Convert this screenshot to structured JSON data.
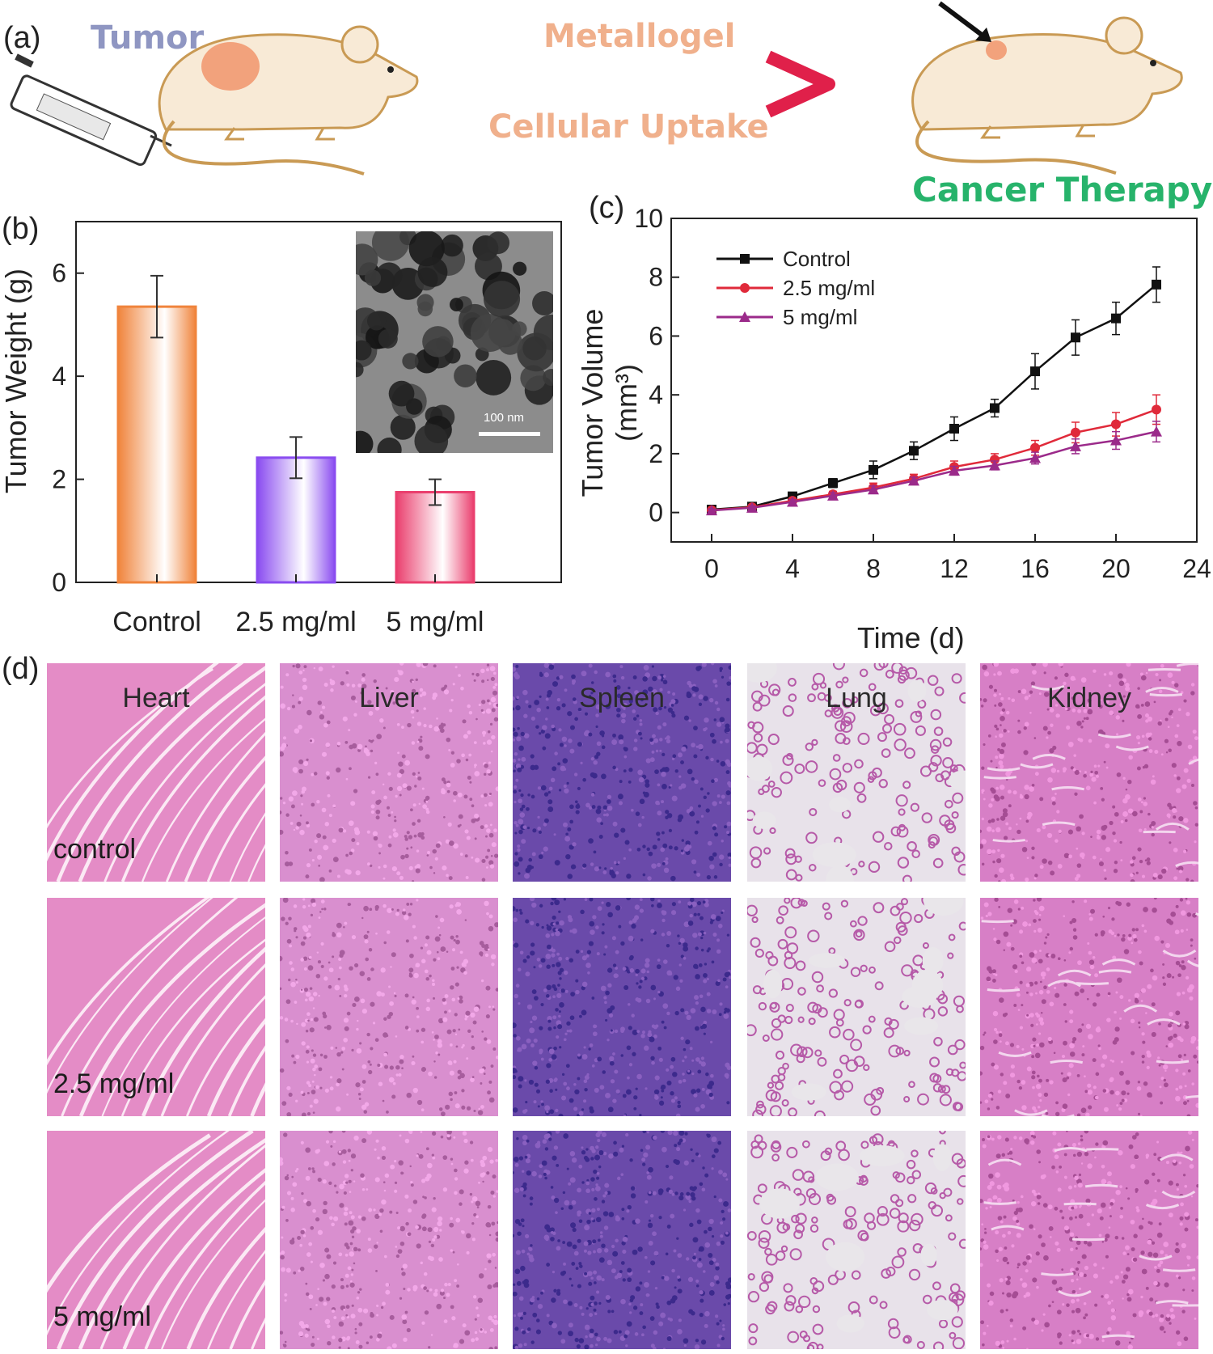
{
  "panel_a": {
    "label": "(a)",
    "tumor_text": "Tumor",
    "arrow_top_text": "Metallogel",
    "arrow_bottom_text": "Cellular Uptake",
    "result_text": "Cancer Therapy",
    "colors": {
      "tumor_text": "#8f96c2",
      "process_text": "#f0b08c",
      "result_text": "#27b36b",
      "arrow_start": "#5a2ca8",
      "arrow_end": "#e0204a",
      "mouse_fill": "#f8ead6",
      "mouse_outline": "#c99a54",
      "tumor_spot": "#f2a27c"
    }
  },
  "panel_b": {
    "label": "(b)",
    "inset_scale": "100 nm",
    "chart_data": {
      "type": "bar",
      "categories": [
        "Control",
        "2.5 mg/ml",
        "5 mg/ml"
      ],
      "values": [
        5.35,
        2.42,
        1.75
      ],
      "errors": [
        0.6,
        0.4,
        0.25
      ],
      "colors": [
        "#f0843c",
        "#8a4cf0",
        "#ea3f6e"
      ],
      "ylabel": "Tumor Weight (g)",
      "ylim": [
        0,
        7
      ],
      "yticks": [
        "0",
        "2",
        "4",
        "6"
      ],
      "xlabel": "",
      "grid": false
    }
  },
  "panel_c": {
    "label": "(c)",
    "chart_data": {
      "type": "line",
      "x": [
        0,
        2,
        4,
        6,
        8,
        10,
        12,
        14,
        16,
        18,
        20,
        22
      ],
      "series": [
        {
          "name": "Control",
          "color": "#111111",
          "marker": "square",
          "values": [
            0.1,
            0.2,
            0.55,
            1.0,
            1.45,
            2.1,
            2.85,
            3.55,
            4.8,
            5.95,
            6.6,
            7.75
          ],
          "errors": [
            0.05,
            0.08,
            0.12,
            0.15,
            0.3,
            0.3,
            0.4,
            0.3,
            0.6,
            0.6,
            0.55,
            0.6
          ]
        },
        {
          "name": "2.5 mg/ml",
          "color": "#e02a3a",
          "marker": "circle",
          "values": [
            0.08,
            0.18,
            0.4,
            0.62,
            0.85,
            1.15,
            1.55,
            1.8,
            2.2,
            2.72,
            3.0,
            3.5
          ],
          "errors": [
            0.05,
            0.06,
            0.08,
            0.1,
            0.15,
            0.15,
            0.2,
            0.2,
            0.25,
            0.35,
            0.4,
            0.5
          ]
        },
        {
          "name": "5 mg/ml",
          "color": "#9b2a8a",
          "marker": "triangle",
          "values": [
            0.07,
            0.16,
            0.36,
            0.57,
            0.78,
            1.08,
            1.42,
            1.6,
            1.85,
            2.25,
            2.45,
            2.75
          ],
          "errors": [
            0.05,
            0.06,
            0.08,
            0.1,
            0.12,
            0.12,
            0.15,
            0.15,
            0.2,
            0.25,
            0.3,
            0.35
          ]
        }
      ],
      "xlabel": "Time (d)",
      "ylabel": "Tumor Volume (mm³)",
      "xlim": [
        -2,
        24
      ],
      "ylim": [
        -1,
        10
      ],
      "xticks": [
        "0",
        "4",
        "8",
        "12",
        "16",
        "20",
        "24"
      ],
      "yticks": [
        "0",
        "2",
        "4",
        "6",
        "8",
        "10"
      ],
      "legend_position": "top-left",
      "grid": false
    }
  },
  "panel_d": {
    "label": "(d)",
    "organs": [
      "Heart",
      "Liver",
      "Spleen",
      "Lung",
      "Kidney"
    ],
    "groups": [
      "control",
      "2.5 mg/ml",
      "5 mg/ml"
    ],
    "stain_colors": {
      "heart": "#e48cc6",
      "liver": "#d98fcf",
      "spleen": "#6a4aaa",
      "lung": "#e8e2ea",
      "kidney": "#d77fc6"
    }
  }
}
